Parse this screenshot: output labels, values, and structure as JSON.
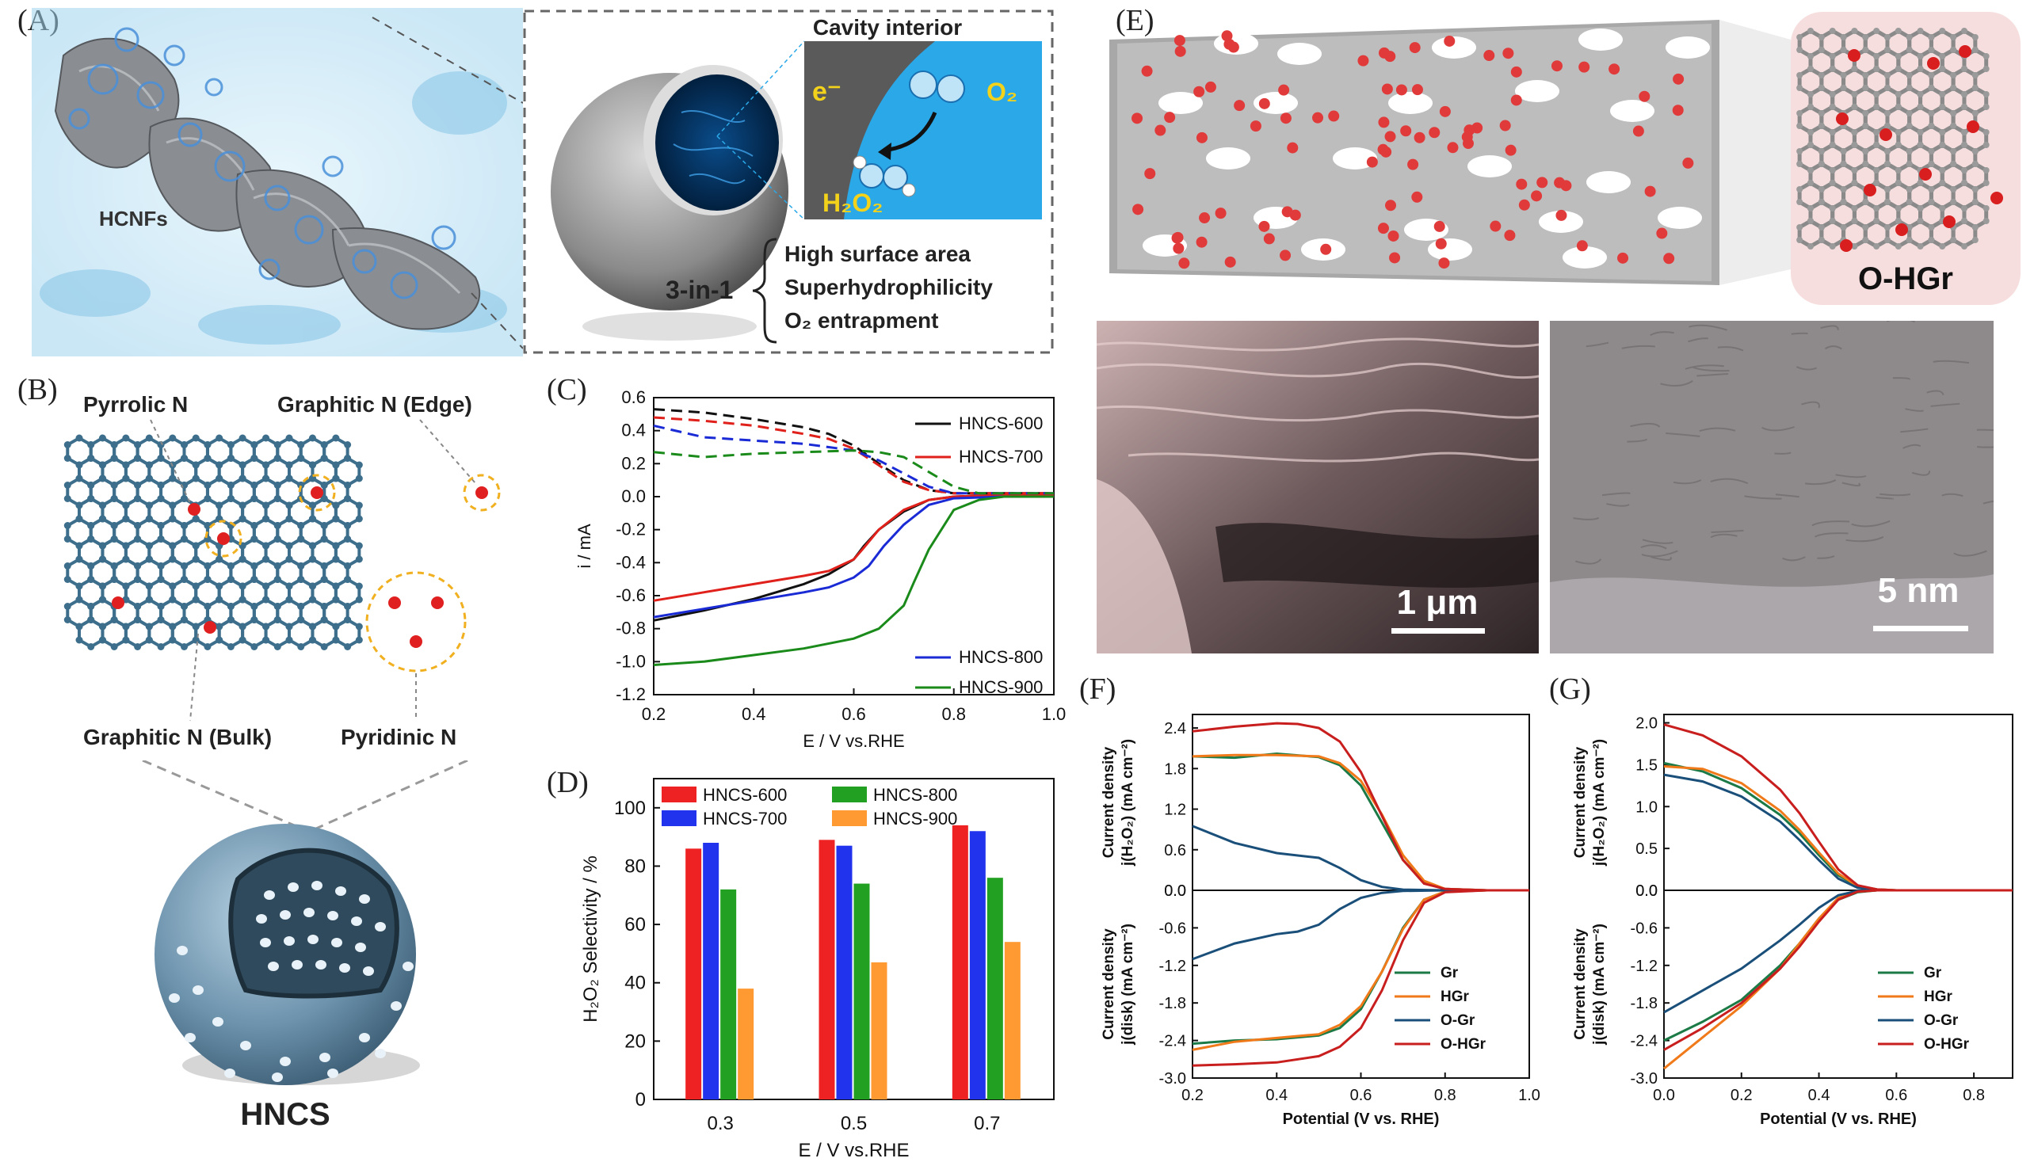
{
  "panel_labels": {
    "a": "(A)",
    "b": "(B)",
    "c": "(C)",
    "d": "(D)",
    "e": "(E)",
    "f": "(F)",
    "g": "(G)"
  },
  "panel_a": {
    "hcnf_label": "HCNFs",
    "cavity_title": "Cavity interior",
    "electron": "e⁻",
    "o2": "O₂",
    "h2o2": "H₂O₂",
    "three_in_one": "3-in-1",
    "features": [
      "High surface area",
      "Superhydrophilicity",
      "O₂ entrapment"
    ]
  },
  "panel_b": {
    "pyrrolic": "Pyrrolic N",
    "graphitic_edge": "Graphitic N (Edge)",
    "graphitic_bulk": "Graphitic N (Bulk)",
    "pyridinic": "Pyridinic N",
    "sphere_label": "HNCS"
  },
  "panel_e": {
    "ohgr": "O-HGr",
    "scale_sem": "1 μm",
    "scale_tem": "5 nm"
  },
  "chart_data": [
    {
      "id": "C",
      "type": "line",
      "xlabel": "E / V vs.RHE",
      "ylabel": "i / mA",
      "xlim": [
        0.2,
        1.0
      ],
      "ylim": [
        -1.2,
        0.6
      ],
      "xticks": [
        "0.2",
        "0.4",
        "0.6",
        "0.8",
        "1.0"
      ],
      "yticks": [
        "0.6",
        "0.4",
        "0.2",
        "0.0",
        "-0.2",
        "-0.4",
        "-0.6",
        "-0.8",
        "-1.0",
        "-1.2"
      ],
      "legend_top": [
        "HNCS-600",
        "HNCS-700"
      ],
      "legend_bottom": [
        "HNCS-800",
        "HNCS-900"
      ],
      "series": [
        {
          "name": "HNCS-600",
          "color": "#111111",
          "ring_x": [
            0.2,
            0.3,
            0.4,
            0.5,
            0.55,
            0.6,
            0.65,
            0.7,
            0.75,
            0.8,
            0.9,
            1.0
          ],
          "ring": [
            0.53,
            0.51,
            0.47,
            0.42,
            0.38,
            0.31,
            0.2,
            0.1,
            0.04,
            0.02,
            0.02,
            0.02
          ],
          "disk_x": [
            0.2,
            0.3,
            0.4,
            0.5,
            0.55,
            0.6,
            0.62,
            0.65,
            0.7,
            0.75,
            0.8,
            0.9,
            1.0
          ],
          "disk": [
            -0.75,
            -0.69,
            -0.62,
            -0.53,
            -0.47,
            -0.38,
            -0.3,
            -0.2,
            -0.09,
            -0.02,
            0.0,
            0.01,
            0.01
          ]
        },
        {
          "name": "HNCS-700",
          "color": "#e0201a",
          "ring_x": [
            0.2,
            0.3,
            0.4,
            0.5,
            0.55,
            0.6,
            0.65,
            0.7,
            0.75,
            0.8,
            0.9,
            1.0
          ],
          "ring": [
            0.48,
            0.46,
            0.43,
            0.38,
            0.35,
            0.29,
            0.19,
            0.09,
            0.04,
            0.02,
            0.02,
            0.02
          ],
          "disk_x": [
            0.2,
            0.3,
            0.4,
            0.5,
            0.55,
            0.6,
            0.62,
            0.65,
            0.7,
            0.75,
            0.8,
            0.9,
            1.0
          ],
          "disk": [
            -0.63,
            -0.58,
            -0.53,
            -0.48,
            -0.45,
            -0.38,
            -0.31,
            -0.2,
            -0.08,
            -0.02,
            0.0,
            0.01,
            0.01
          ]
        },
        {
          "name": "HNCS-800",
          "color": "#1a2bd6",
          "ring_x": [
            0.2,
            0.3,
            0.4,
            0.5,
            0.55,
            0.6,
            0.65,
            0.7,
            0.75,
            0.8,
            0.9,
            1.0
          ],
          "ring": [
            0.43,
            0.36,
            0.34,
            0.32,
            0.3,
            0.28,
            0.22,
            0.14,
            0.06,
            0.02,
            0.02,
            0.02
          ],
          "disk_x": [
            0.2,
            0.3,
            0.4,
            0.5,
            0.55,
            0.6,
            0.63,
            0.66,
            0.7,
            0.75,
            0.8,
            0.9,
            1.0
          ],
          "disk": [
            -0.73,
            -0.68,
            -0.63,
            -0.58,
            -0.55,
            -0.49,
            -0.42,
            -0.3,
            -0.17,
            -0.05,
            -0.01,
            0.0,
            0.0
          ]
        },
        {
          "name": "HNCS-900",
          "color": "#1a8a1a",
          "ring_x": [
            0.2,
            0.3,
            0.4,
            0.5,
            0.6,
            0.65,
            0.7,
            0.75,
            0.8,
            0.85,
            0.9,
            1.0
          ],
          "ring": [
            0.27,
            0.24,
            0.26,
            0.27,
            0.28,
            0.27,
            0.24,
            0.15,
            0.06,
            0.02,
            0.02,
            0.02
          ],
          "disk_x": [
            0.2,
            0.3,
            0.4,
            0.5,
            0.6,
            0.65,
            0.7,
            0.72,
            0.75,
            0.8,
            0.85,
            0.9,
            1.0
          ],
          "disk": [
            -1.02,
            -1.0,
            -0.96,
            -0.92,
            -0.86,
            -0.8,
            -0.66,
            -0.52,
            -0.32,
            -0.08,
            -0.02,
            0.0,
            0.0
          ]
        }
      ]
    },
    {
      "id": "D",
      "type": "bar",
      "xlabel": "E / V vs.RHE",
      "ylabel": "H₂O₂ Selectivity / %",
      "ylim": [
        0,
        110
      ],
      "yticks": [
        "0",
        "20",
        "40",
        "60",
        "80",
        "100"
      ],
      "categories": [
        "0.3",
        "0.5",
        "0.7"
      ],
      "series": [
        {
          "name": "HNCS-600",
          "color": "#ee2222",
          "values": [
            86,
            89,
            94
          ]
        },
        {
          "name": "HNCS-700",
          "color": "#2233ee",
          "values": [
            88,
            87,
            92
          ]
        },
        {
          "name": "HNCS-800",
          "color": "#22a022",
          "values": [
            72,
            74,
            76
          ]
        },
        {
          "name": "HNCS-900",
          "color": "#ff9a33",
          "values": [
            38,
            47,
            54
          ]
        }
      ]
    },
    {
      "id": "F",
      "type": "line",
      "xlabel": "Potential (V vs. RHE)",
      "top_ylabel": "Current density",
      "top_ylabel2": "j(H₂O₂) (mA cm⁻²)",
      "bottom_ylabel": "Current density",
      "bottom_ylabel2": "j(disk) (mA cm⁻²)",
      "xlim": [
        0.2,
        1.0
      ],
      "top_ylim": [
        0.0,
        2.6
      ],
      "bottom_ylim": [
        -3.0,
        0.0
      ],
      "xticks": [
        "0.2",
        "0.4",
        "0.6",
        "0.8",
        "1.0"
      ],
      "top_yticks": [
        "2.4",
        "1.8",
        "1.2",
        "0.6",
        "0.0"
      ],
      "bottom_yticks": [
        "0.0",
        "-0.6",
        "-1.2",
        "-1.8",
        "-2.4",
        "-3.0"
      ],
      "legend": [
        "Gr",
        "HGr",
        "O-Gr",
        "O-HGr"
      ],
      "series": [
        {
          "name": "Gr",
          "color": "#1b7a45",
          "top_x": [
            0.2,
            0.3,
            0.4,
            0.5,
            0.55,
            0.6,
            0.65,
            0.7,
            0.75,
            0.8,
            0.9,
            1.0
          ],
          "top": [
            1.98,
            1.96,
            2.02,
            1.97,
            1.85,
            1.55,
            1.0,
            0.45,
            0.12,
            0.02,
            0.0,
            0.0
          ],
          "bot_x": [
            0.2,
            0.3,
            0.4,
            0.5,
            0.55,
            0.6,
            0.65,
            0.7,
            0.75,
            0.8,
            0.9,
            1.0
          ],
          "bot": [
            -2.45,
            -2.4,
            -2.38,
            -2.32,
            -2.2,
            -1.9,
            -1.3,
            -0.6,
            -0.15,
            -0.02,
            0.0,
            0.0
          ]
        },
        {
          "name": "HGr",
          "color": "#f07a1a",
          "top_x": [
            0.2,
            0.3,
            0.4,
            0.5,
            0.55,
            0.6,
            0.65,
            0.7,
            0.75,
            0.8,
            0.9,
            1.0
          ],
          "top": [
            1.98,
            2.0,
            2.0,
            1.98,
            1.88,
            1.62,
            1.12,
            0.52,
            0.14,
            0.02,
            0.0,
            0.0
          ],
          "bot_x": [
            0.2,
            0.3,
            0.4,
            0.5,
            0.55,
            0.6,
            0.65,
            0.7,
            0.75,
            0.8,
            0.9,
            1.0
          ],
          "bot": [
            -2.55,
            -2.42,
            -2.36,
            -2.3,
            -2.15,
            -1.85,
            -1.3,
            -0.62,
            -0.15,
            -0.02,
            0.0,
            0.0
          ]
        },
        {
          "name": "O-Gr",
          "color": "#1a4f7a",
          "top_x": [
            0.2,
            0.3,
            0.4,
            0.5,
            0.55,
            0.6,
            0.65,
            0.7,
            0.8,
            0.9,
            1.0
          ],
          "top": [
            0.95,
            0.7,
            0.55,
            0.48,
            0.33,
            0.15,
            0.05,
            0.01,
            0.0,
            0.0,
            0.0
          ],
          "bot_x": [
            0.2,
            0.3,
            0.4,
            0.45,
            0.5,
            0.55,
            0.6,
            0.65,
            0.7,
            0.8,
            0.9,
            1.0
          ],
          "bot": [
            -1.1,
            -0.85,
            -0.7,
            -0.66,
            -0.55,
            -0.3,
            -0.12,
            -0.04,
            -0.01,
            0.0,
            0.0,
            0.0
          ]
        },
        {
          "name": "O-HGr",
          "color": "#c81e1e",
          "top_x": [
            0.2,
            0.3,
            0.4,
            0.45,
            0.5,
            0.55,
            0.6,
            0.65,
            0.7,
            0.75,
            0.8,
            0.9,
            1.0
          ],
          "top": [
            2.35,
            2.42,
            2.47,
            2.46,
            2.4,
            2.2,
            1.75,
            1.1,
            0.45,
            0.1,
            0.02,
            0.0,
            0.0
          ],
          "bot_x": [
            0.2,
            0.3,
            0.4,
            0.5,
            0.55,
            0.6,
            0.65,
            0.7,
            0.75,
            0.8,
            0.9,
            1.0
          ],
          "bot": [
            -2.8,
            -2.78,
            -2.75,
            -2.65,
            -2.5,
            -2.2,
            -1.6,
            -0.8,
            -0.2,
            -0.03,
            0.0,
            0.0
          ]
        }
      ]
    },
    {
      "id": "G",
      "type": "line",
      "xlabel": "Potential (V vs. RHE)",
      "top_ylabel": "Current density",
      "top_ylabel2": "j(H₂O₂) (mA cm⁻²)",
      "bottom_ylabel": "Current density",
      "bottom_ylabel2": "j(disk) (mA cm⁻²)",
      "xlim": [
        0.0,
        0.9
      ],
      "top_ylim": [
        0.0,
        2.1
      ],
      "bottom_ylim": [
        -3.0,
        0.0
      ],
      "xticks": [
        "0.0",
        "0.2",
        "0.4",
        "0.6",
        "0.8"
      ],
      "top_yticks": [
        "2.0",
        "1.5",
        "1.0",
        "0.5",
        "0.0"
      ],
      "bottom_yticks": [
        "0.0",
        "-0.6",
        "-1.2",
        "-1.8",
        "-2.4",
        "-3.0"
      ],
      "legend": [
        "Gr",
        "HGr",
        "O-Gr",
        "O-HGr"
      ],
      "series": [
        {
          "name": "Gr",
          "color": "#1b7a45",
          "top_x": [
            0.0,
            0.1,
            0.2,
            0.3,
            0.35,
            0.4,
            0.45,
            0.5,
            0.55,
            0.6,
            0.9
          ],
          "top": [
            1.52,
            1.42,
            1.22,
            0.9,
            0.68,
            0.42,
            0.18,
            0.05,
            0.01,
            0.0,
            0.0
          ],
          "bot_x": [
            0.0,
            0.1,
            0.2,
            0.3,
            0.35,
            0.4,
            0.45,
            0.5,
            0.55,
            0.6,
            0.9
          ],
          "bot": [
            -2.4,
            -2.1,
            -1.75,
            -1.2,
            -0.85,
            -0.45,
            -0.15,
            -0.03,
            0.0,
            0.0,
            0.0
          ]
        },
        {
          "name": "HGr",
          "color": "#f07a1a",
          "top_x": [
            0.0,
            0.1,
            0.2,
            0.3,
            0.35,
            0.4,
            0.45,
            0.5,
            0.55,
            0.6,
            0.9
          ],
          "top": [
            1.48,
            1.45,
            1.28,
            0.95,
            0.72,
            0.45,
            0.2,
            0.05,
            0.01,
            0.0,
            0.0
          ],
          "bot_x": [
            0.0,
            0.1,
            0.2,
            0.3,
            0.35,
            0.4,
            0.45,
            0.5,
            0.55,
            0.6,
            0.9
          ],
          "bot": [
            -2.85,
            -2.35,
            -1.85,
            -1.25,
            -0.85,
            -0.45,
            -0.12,
            -0.02,
            0.0,
            0.0,
            0.0
          ]
        },
        {
          "name": "O-Gr",
          "color": "#1a4f7a",
          "top_x": [
            0.0,
            0.1,
            0.2,
            0.3,
            0.35,
            0.4,
            0.45,
            0.5,
            0.55,
            0.6,
            0.9
          ],
          "top": [
            1.38,
            1.3,
            1.12,
            0.82,
            0.6,
            0.36,
            0.14,
            0.03,
            0.0,
            0.0,
            0.0
          ],
          "bot_x": [
            0.0,
            0.1,
            0.2,
            0.3,
            0.35,
            0.4,
            0.45,
            0.5,
            0.55,
            0.6,
            0.9
          ],
          "bot": [
            -1.95,
            -1.6,
            -1.25,
            -0.8,
            -0.55,
            -0.28,
            -0.08,
            -0.01,
            0.0,
            0.0,
            0.0
          ]
        },
        {
          "name": "O-HGr",
          "color": "#c81e1e",
          "top_x": [
            0.0,
            0.1,
            0.2,
            0.3,
            0.35,
            0.4,
            0.45,
            0.5,
            0.55,
            0.6,
            0.9
          ],
          "top": [
            1.98,
            1.85,
            1.6,
            1.2,
            0.92,
            0.58,
            0.25,
            0.06,
            0.01,
            0.0,
            0.0
          ],
          "bot_x": [
            0.0,
            0.1,
            0.2,
            0.3,
            0.35,
            0.4,
            0.45,
            0.5,
            0.55,
            0.6,
            0.9
          ],
          "bot": [
            -2.55,
            -2.2,
            -1.8,
            -1.25,
            -0.9,
            -0.5,
            -0.15,
            -0.02,
            0.0,
            0.0,
            0.0
          ]
        }
      ]
    }
  ]
}
